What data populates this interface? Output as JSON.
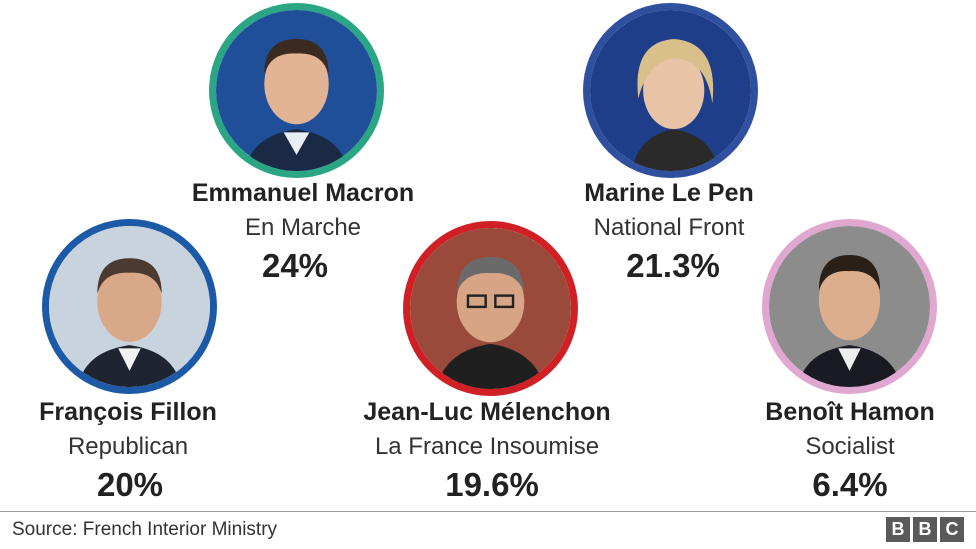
{
  "chart_data": {
    "type": "bar",
    "title": "",
    "categories": [
      "Emmanuel Macron",
      "Marine Le Pen",
      "François Fillon",
      "Jean-Luc Mélenchon",
      "Benoît Hamon"
    ],
    "values": [
      24,
      21.3,
      20,
      19.6,
      6.4
    ],
    "value_labels": [
      "24%",
      "21.3%",
      "20%",
      "19.6%",
      "6.4%"
    ],
    "candidates": [
      {
        "name": "Emmanuel Macron",
        "party": "En Marche",
        "share": "24%",
        "value": 24,
        "ring_color": "#2aa684",
        "bg_color": "#1f4f99"
      },
      {
        "name": "Marine Le Pen",
        "party": "National Front",
        "share": "21.3%",
        "value": 21.3,
        "ring_color": "#2f4f9f",
        "bg_color": "#1e3e8a"
      },
      {
        "name": "François Fillon",
        "party": "Republican",
        "share": "20%",
        "value": 20,
        "ring_color": "#1c5aa8",
        "bg_color": "#c9d3de"
      },
      {
        "name": "Jean-Luc Mélenchon",
        "party": "La France Insoumise",
        "share": "19.6%",
        "value": 19.6,
        "ring_color": "#d11f26",
        "bg_color": "#9a4a3a"
      },
      {
        "name": "Benoît Hamon",
        "party": "Socialist",
        "share": "6.4%",
        "value": 6.4,
        "ring_color": "#e0a8d0",
        "bg_color": "#8c8c8c"
      }
    ]
  },
  "footer": {
    "source": "Source: French Interior Ministry",
    "logo_letters": [
      "B",
      "B",
      "C"
    ]
  }
}
